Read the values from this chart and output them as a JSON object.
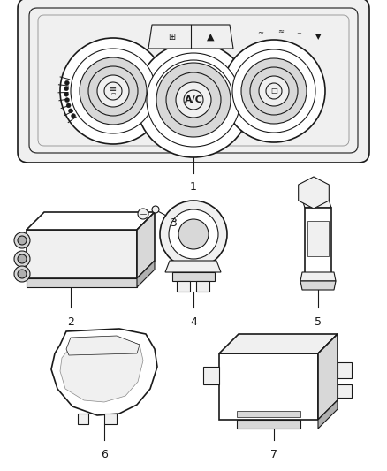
{
  "bg_color": "#ffffff",
  "line_color": "#1a1a1a",
  "label_color": "#1a1a1a",
  "fig_width": 4.38,
  "fig_height": 5.33,
  "dpi": 100
}
